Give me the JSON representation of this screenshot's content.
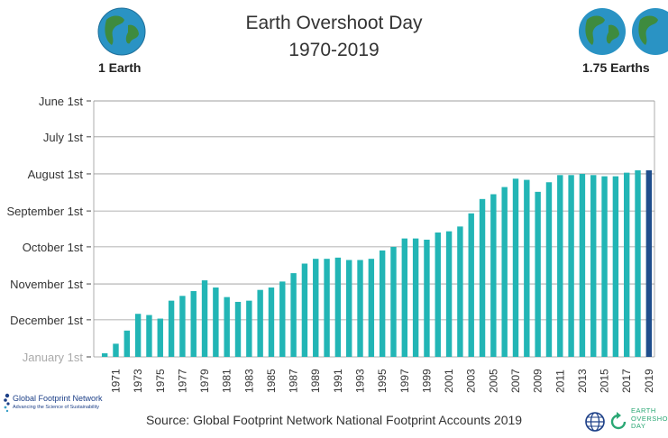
{
  "header": {
    "title_line1": "Earth Overshoot Day",
    "title_line2": "1970-2019",
    "left_label": "1 Earth",
    "right_label": "1.75 Earths"
  },
  "source": "Source: Global Footprint Network National Footprint Accounts 2019",
  "logos": {
    "gfn_name": "Global Footprint Network",
    "gfn_tagline": "Advancing the Science of Sustainability",
    "eod_line1": "EARTH",
    "eod_line2": "OVERSHOOT",
    "eod_line3": "DAY"
  },
  "colors": {
    "bar": "#22b5b5",
    "bar_last": "#1f4e8c",
    "grid": "#999999",
    "globe_water": "#2a93c4",
    "globe_land": "#3e8b3e"
  },
  "chart_data": {
    "type": "bar",
    "title": "Earth Overshoot Day",
    "subtitle": "1970-2019",
    "x": [
      1970,
      1971,
      1972,
      1973,
      1974,
      1975,
      1976,
      1977,
      1978,
      1979,
      1980,
      1981,
      1982,
      1983,
      1984,
      1985,
      1986,
      1987,
      1988,
      1989,
      1990,
      1991,
      1992,
      1993,
      1994,
      1995,
      1996,
      1997,
      1998,
      1999,
      2000,
      2001,
      2002,
      2003,
      2004,
      2005,
      2006,
      2007,
      2008,
      2009,
      2010,
      2011,
      2012,
      2013,
      2014,
      2015,
      2016,
      2017,
      2018,
      2019
    ],
    "x_tick_labels": [
      "1971",
      "1973",
      "1975",
      "1977",
      "1979",
      "1981",
      "1983",
      "1985",
      "1987",
      "1989",
      "1991",
      "1993",
      "1995",
      "1997",
      "1999",
      "2001",
      "2003",
      "2005",
      "2007",
      "2009",
      "2011",
      "2013",
      "2015",
      "2017",
      "2019"
    ],
    "values": [
      "December 29",
      "December 21",
      "December 10",
      "November 26",
      "November 27",
      "November 30",
      "November 15",
      "November 11",
      "November 7",
      "October 29",
      "November 4",
      "November 12",
      "November 16",
      "November 15",
      "November 6",
      "November 4",
      "October 30",
      "October 23",
      "October 15",
      "October 11",
      "October 11",
      "October 10",
      "October 12",
      "October 12",
      "October 11",
      "October 4",
      "October 1",
      "September 24",
      "September 24",
      "September 25",
      "September 19",
      "September 18",
      "September 14",
      "September 3",
      "August 22",
      "August 18",
      "August 12",
      "August 5",
      "August 6",
      "August 16",
      "August 8",
      "August 2",
      "August 2",
      "August 1",
      "August 2",
      "August 3",
      "August 3",
      "July 31",
      "July 29",
      "July 29"
    ],
    "y_axis_labels": [
      "January 1st",
      "December 1st",
      "November 1st",
      "October 1st",
      "September 1st",
      "August 1st",
      "July 1st",
      "June 1st"
    ],
    "ylim": [
      "December 31",
      "June 1"
    ],
    "grid": "horizontal",
    "last_bar_highlighted": true
  }
}
